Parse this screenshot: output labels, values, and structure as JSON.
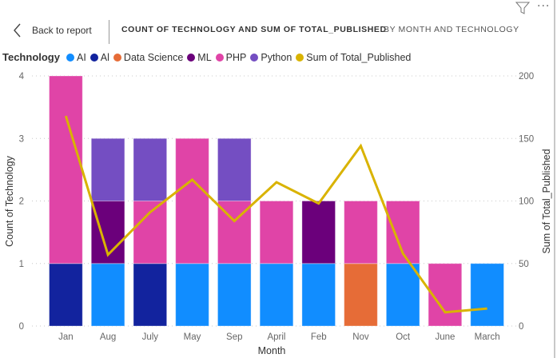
{
  "header": {
    "back_label": "Back to report",
    "title": "COUNT OF TECHNOLOGY AND SUM OF TOTAL_PUBLISHED",
    "subtitle": "BY MONTH AND TECHNOLOGY",
    "filter_icon": "filter-icon",
    "more_icon": "more-options-icon",
    "more_glyph": "···"
  },
  "legend": {
    "title": "Technology",
    "items": [
      {
        "label": "AI",
        "color": "#118DFF"
      },
      {
        "label": "Al",
        "color": "#12239E"
      },
      {
        "label": "Data Science",
        "color": "#E66C37"
      },
      {
        "label": "ML",
        "color": "#6B007B"
      },
      {
        "label": "PHP",
        "color": "#E044A7"
      },
      {
        "label": "Python",
        "color": "#744EC2"
      },
      {
        "label": "Sum of Total_Published",
        "color": "#D9B300"
      }
    ]
  },
  "chart_data": {
    "type": "bar",
    "subtype": "stacked-column-with-line",
    "title": "COUNT OF TECHNOLOGY AND SUM OF TOTAL_PUBLISHED BY MONTH AND TECHNOLOGY",
    "xlabel": "Month",
    "ylabel": "Count of Technology",
    "y2label": "Sum of Total_Published",
    "ylim": [
      0,
      4
    ],
    "y2lim": [
      0,
      200
    ],
    "yticks": [
      "0",
      "1",
      "2",
      "3",
      "4"
    ],
    "y2ticks": [
      "0",
      "50",
      "100",
      "150",
      "200"
    ],
    "grid": true,
    "legend_position": "top-left",
    "categories": [
      "Jan",
      "Aug",
      "July",
      "May",
      "Sep",
      "April",
      "Feb",
      "Nov",
      "Oct",
      "June",
      "March"
    ],
    "series": [
      {
        "name": "AI",
        "color": "#118DFF",
        "values": [
          0,
          1,
          0,
          1,
          1,
          1,
          1,
          0,
          1,
          0,
          1
        ]
      },
      {
        "name": "Al",
        "color": "#12239E",
        "values": [
          1,
          0,
          1,
          0,
          0,
          0,
          0,
          0,
          0,
          0,
          0
        ]
      },
      {
        "name": "Data Science",
        "color": "#E66C37",
        "values": [
          0,
          0,
          0,
          0,
          0,
          0,
          0,
          1,
          0,
          0,
          0
        ]
      },
      {
        "name": "ML",
        "color": "#6B007B",
        "values": [
          0,
          1,
          0,
          0,
          0,
          0,
          1,
          0,
          0,
          0,
          0
        ]
      },
      {
        "name": "PHP",
        "color": "#E044A7",
        "values": [
          3,
          0,
          1,
          2,
          1,
          1,
          0,
          1,
          1,
          1,
          0
        ]
      },
      {
        "name": "Python",
        "color": "#744EC2",
        "values": [
          0,
          1,
          1,
          0,
          1,
          0,
          0,
          0,
          0,
          0,
          0
        ]
      }
    ],
    "line_series": {
      "name": "Sum of Total_Published",
      "color": "#D9B300",
      "axis": "secondary",
      "values": [
        168,
        57,
        91,
        117,
        84,
        115,
        98,
        144,
        58,
        11,
        14
      ]
    }
  }
}
